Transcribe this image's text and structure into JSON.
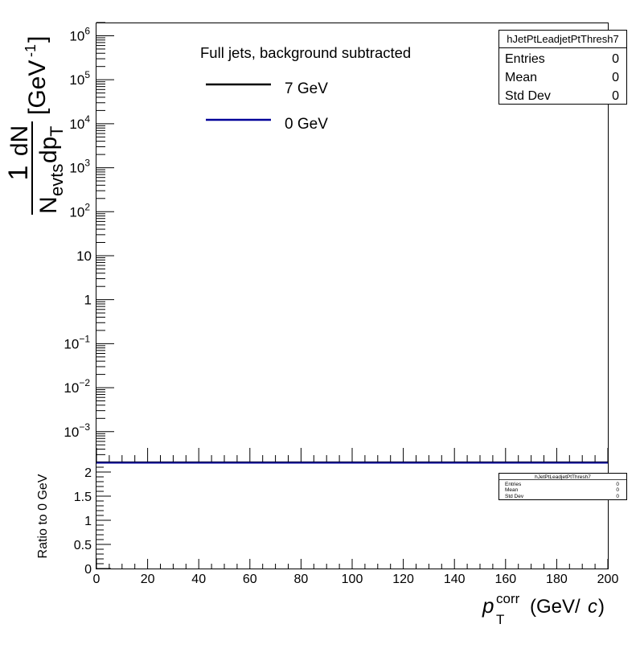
{
  "chart_data": [
    {
      "type": "line",
      "name": "top-panel",
      "legend_title": "Full jets, background subtracted",
      "ylabel": {
        "num": "1",
        "den_main": "dN",
        "den_n": "N",
        "den_n_sub": "evts",
        "den_dp": "dp",
        "den_dp_sub": "T",
        "unit": "[GeV",
        "unit_sup": "-1",
        "unit_close": "]"
      },
      "xlim": [
        0,
        200
      ],
      "ylim": [
        0.0002,
        2000000
      ],
      "y_scale": "log",
      "y_tick_labels": [
        {
          "v": 1000000.0,
          "base": "10",
          "exp": "6"
        },
        {
          "v": 100000.0,
          "base": "10",
          "exp": "5"
        },
        {
          "v": 10000.0,
          "base": "10",
          "exp": "4"
        },
        {
          "v": 1000.0,
          "base": "10",
          "exp": "3"
        },
        {
          "v": 100.0,
          "base": "10",
          "exp": "2"
        },
        {
          "v": 10,
          "base": "10",
          "exp": ""
        },
        {
          "v": 1,
          "base": "1",
          "exp": ""
        },
        {
          "v": 0.1,
          "base": "10",
          "exp": "−1"
        },
        {
          "v": 0.01,
          "base": "10",
          "exp": "−2"
        },
        {
          "v": 0.001,
          "base": "10",
          "exp": "−3"
        }
      ],
      "series": [
        {
          "name": "7 GeV",
          "color": "#000000",
          "x": [],
          "y": []
        },
        {
          "name": "0 GeV",
          "color": "#000099",
          "x": [],
          "y": []
        }
      ],
      "stats_box": {
        "title": "hJetPtLeadjetPtThresh7",
        "rows": [
          {
            "label": "Entries",
            "value": "0"
          },
          {
            "label": "Mean",
            "value": "0"
          },
          {
            "label": "Std Dev",
            "value": "0"
          }
        ]
      },
      "legend_position": "top-center",
      "grid": false
    },
    {
      "type": "line",
      "name": "ratio-panel",
      "ylabel": "Ratio to 0 GeV",
      "xlim": [
        0,
        200
      ],
      "ylim": [
        0,
        2.2
      ],
      "x_ticks": [
        0,
        20,
        40,
        60,
        80,
        100,
        120,
        140,
        160,
        180,
        200
      ],
      "y_ticks": [
        0,
        0.5,
        1,
        1.5,
        2
      ],
      "x_axis_title": {
        "p": "p",
        "sup": "corr",
        "sub": "T",
        "unit": "(GeV/",
        "c": "c",
        "close": ")"
      },
      "series": [],
      "stats_box": {
        "title": "hJetPtLeadjetPtThresh7",
        "rows": [
          {
            "label": "Entries",
            "value": "0"
          },
          {
            "label": "Mean",
            "value": "0"
          },
          {
            "label": "Std Dev",
            "value": "0"
          }
        ]
      },
      "grid": false
    }
  ]
}
